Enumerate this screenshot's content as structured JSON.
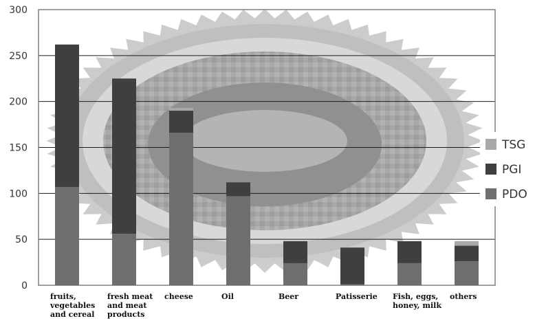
{
  "chart_data": {
    "type": "bar",
    "stacked": true,
    "categories": [
      [
        "fruits,",
        "vegetables",
        "and cereal"
      ],
      [
        "fresh meat",
        "and meat",
        "products"
      ],
      [
        "cheese"
      ],
      [
        "Oil"
      ],
      [
        "Beer"
      ],
      [
        "Patisserie"
      ],
      [
        "Fish, eggs,",
        "honey, milk"
      ],
      [
        "others"
      ]
    ],
    "series": [
      {
        "name": "PDO",
        "color": "#6e6e6e",
        "values": [
          107,
          56,
          166,
          97,
          24,
          1,
          24,
          26
        ]
      },
      {
        "name": "PGI",
        "color": "#3f3f3f",
        "values": [
          155,
          169,
          24,
          15,
          24,
          40,
          24,
          17
        ]
      },
      {
        "name": "TSG",
        "color": "#a9a9a9",
        "values": [
          0,
          0,
          3,
          0,
          0,
          0,
          0,
          5
        ]
      }
    ],
    "ylim": [
      0,
      300
    ],
    "yticks": [
      0,
      50,
      100,
      150,
      200,
      250,
      300
    ],
    "grid": true,
    "legend": "right",
    "legend_order": [
      "TSG",
      "PGI",
      "PDO"
    ],
    "background": "faded seal emblem behind plot area"
  }
}
